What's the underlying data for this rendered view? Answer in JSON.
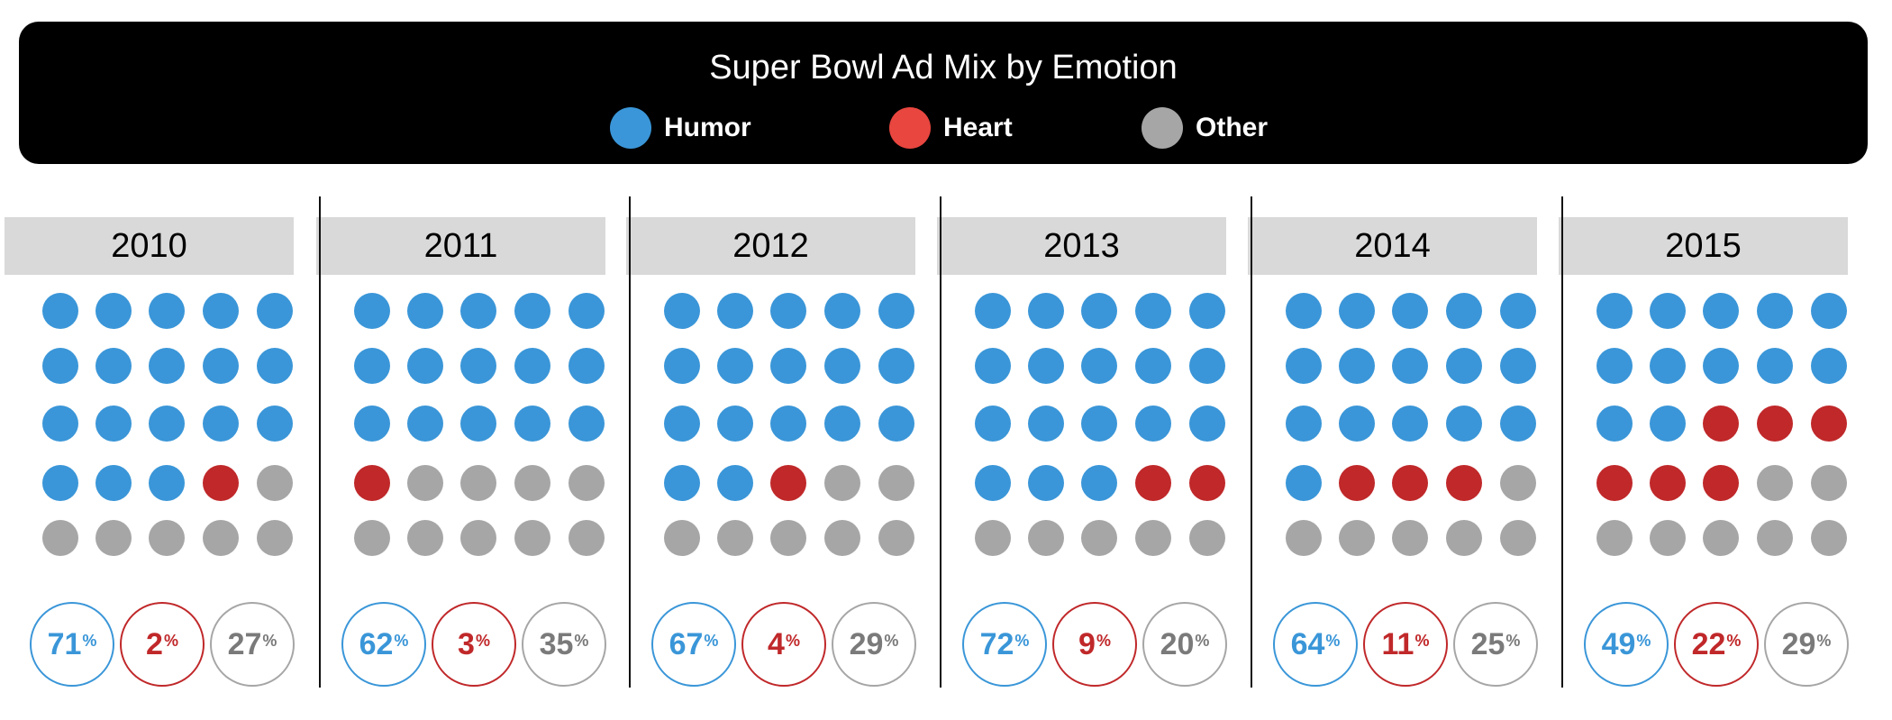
{
  "chart_data": {
    "type": "unit-dot-grid",
    "title": "Super Bowl Ad Mix by Emotion",
    "legend": [
      {
        "name": "Humor",
        "color": "#3a96d8"
      },
      {
        "name": "Heart",
        "color": "#e8463f"
      },
      {
        "name": "Other",
        "color": "#a6a6a6"
      }
    ],
    "legend_placement": "top",
    "grid": {
      "rows": 5,
      "cols": 5
    },
    "colors": {
      "humor": "#3a96d8",
      "heart": "#c0282a",
      "other": "#a6a6a6",
      "other_text": "#7a7a7a"
    },
    "percent_symbol": "%",
    "years": [
      {
        "year": "2010",
        "dots": {
          "humor": 18,
          "heart": 1,
          "other": 6
        },
        "pct": {
          "humor": 71,
          "heart": 2,
          "other": 27
        }
      },
      {
        "year": "2011",
        "dots": {
          "humor": 15,
          "heart": 1,
          "other": 9
        },
        "pct": {
          "humor": 62,
          "heart": 3,
          "other": 35
        }
      },
      {
        "year": "2012",
        "dots": {
          "humor": 17,
          "heart": 1,
          "other": 7
        },
        "pct": {
          "humor": 67,
          "heart": 4,
          "other": 29
        }
      },
      {
        "year": "2013",
        "dots": {
          "humor": 18,
          "heart": 2,
          "other": 5
        },
        "pct": {
          "humor": 72,
          "heart": 9,
          "other": 20
        }
      },
      {
        "year": "2014",
        "dots": {
          "humor": 16,
          "heart": 3,
          "other": 6
        },
        "pct": {
          "humor": 64,
          "heart": 11,
          "other": 25
        }
      },
      {
        "year": "2015",
        "dots": {
          "humor": 12,
          "heart": 6,
          "other": 7
        },
        "pct": {
          "humor": 49,
          "heart": 22,
          "other": 29
        }
      }
    ]
  }
}
